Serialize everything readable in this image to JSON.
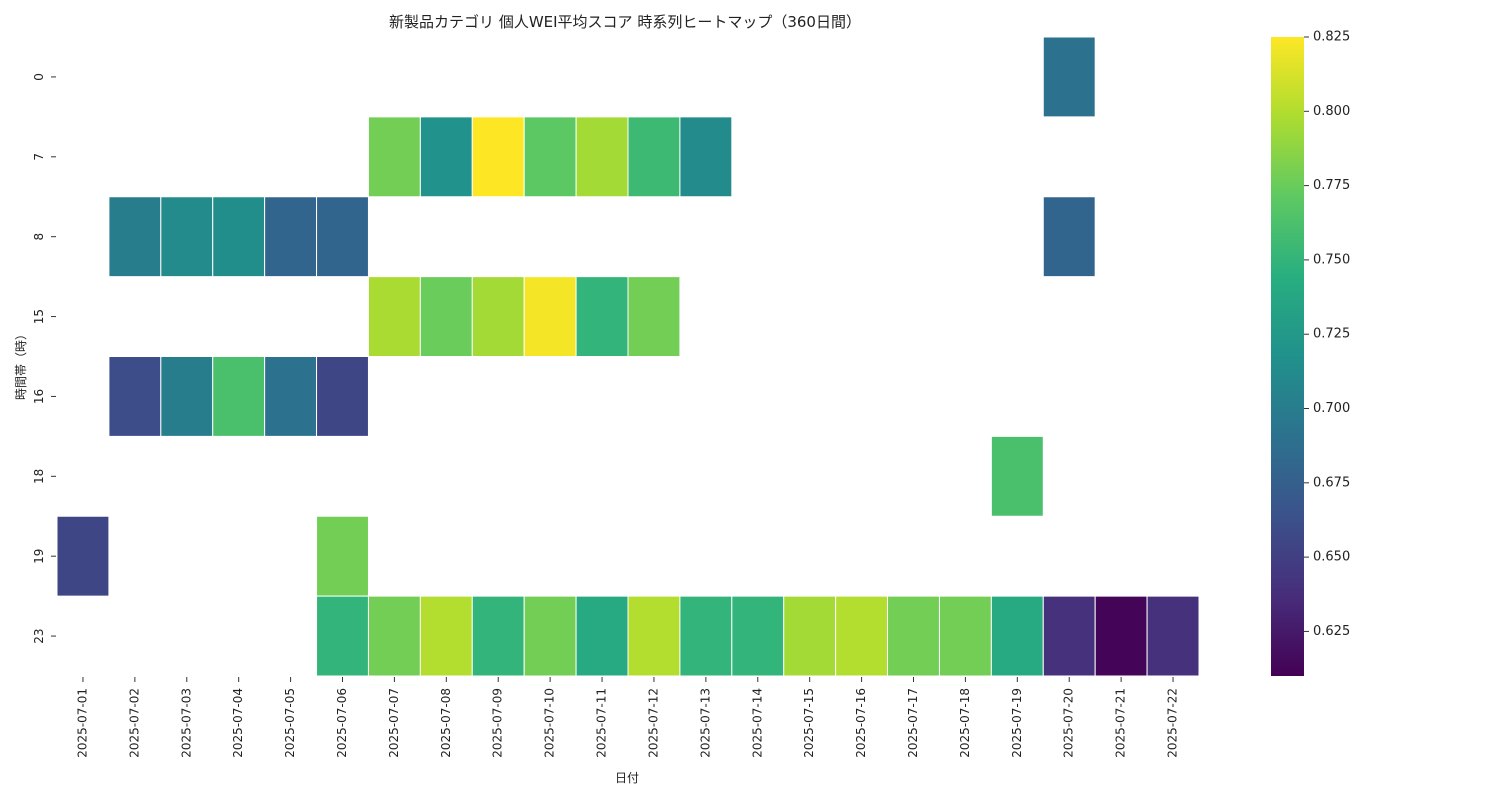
{
  "chart_data": {
    "type": "heatmap",
    "title": "新製品カテゴリ 個人WEI平均スコア 時系列ヒートマップ（360日間）",
    "xlabel": "日付",
    "ylabel": "時間帯（時）",
    "x": [
      "2025-07-01",
      "2025-07-02",
      "2025-07-03",
      "2025-07-04",
      "2025-07-05",
      "2025-07-06",
      "2025-07-07",
      "2025-07-08",
      "2025-07-09",
      "2025-07-10",
      "2025-07-11",
      "2025-07-12",
      "2025-07-13",
      "2025-07-14",
      "2025-07-15",
      "2025-07-16",
      "2025-07-17",
      "2025-07-18",
      "2025-07-19",
      "2025-07-20",
      "2025-07-21",
      "2025-07-22"
    ],
    "y": [
      "0",
      "7",
      "8",
      "15",
      "16",
      "18",
      "19",
      "23"
    ],
    "values": [
      [
        null,
        null,
        null,
        null,
        null,
        null,
        null,
        null,
        null,
        null,
        null,
        null,
        null,
        null,
        null,
        null,
        null,
        null,
        null,
        0.69,
        null,
        null
      ],
      [
        null,
        null,
        null,
        null,
        null,
        null,
        0.778,
        0.718,
        0.825,
        0.77,
        0.795,
        0.755,
        0.712,
        null,
        null,
        null,
        null,
        null,
        null,
        null,
        null,
        null
      ],
      [
        null,
        0.7,
        0.712,
        0.715,
        0.68,
        0.68,
        null,
        null,
        null,
        null,
        null,
        null,
        null,
        null,
        null,
        null,
        null,
        null,
        null,
        0.68,
        null,
        null
      ],
      [
        null,
        null,
        null,
        null,
        null,
        null,
        0.797,
        0.775,
        0.795,
        0.822,
        0.75,
        0.778,
        null,
        null,
        null,
        null,
        null,
        null,
        null,
        null,
        null,
        null
      ],
      [
        null,
        0.66,
        0.7,
        0.762,
        0.69,
        0.655,
        null,
        null,
        null,
        null,
        null,
        null,
        null,
        null,
        null,
        null,
        null,
        null,
        null,
        null,
        null,
        null
      ],
      [
        null,
        null,
        null,
        null,
        null,
        null,
        null,
        null,
        null,
        null,
        null,
        null,
        null,
        null,
        null,
        null,
        null,
        null,
        0.762,
        null,
        null,
        null
      ],
      [
        0.655,
        null,
        null,
        null,
        null,
        0.778,
        null,
        null,
        null,
        null,
        null,
        null,
        null,
        null,
        null,
        null,
        null,
        null,
        null,
        null,
        null,
        null
      ],
      [
        null,
        null,
        null,
        null,
        null,
        0.75,
        0.778,
        0.8,
        0.75,
        0.778,
        0.74,
        0.8,
        0.75,
        0.75,
        0.795,
        0.8,
        0.778,
        0.778,
        0.74,
        0.64,
        0.612,
        0.64
      ]
    ],
    "colorbar": {
      "vmin": 0.61,
      "vmax": 0.825,
      "ticks": [
        "0.625",
        "0.650",
        "0.675",
        "0.700",
        "0.725",
        "0.750",
        "0.775",
        "0.800",
        "0.825"
      ],
      "colormap": "viridis"
    }
  }
}
